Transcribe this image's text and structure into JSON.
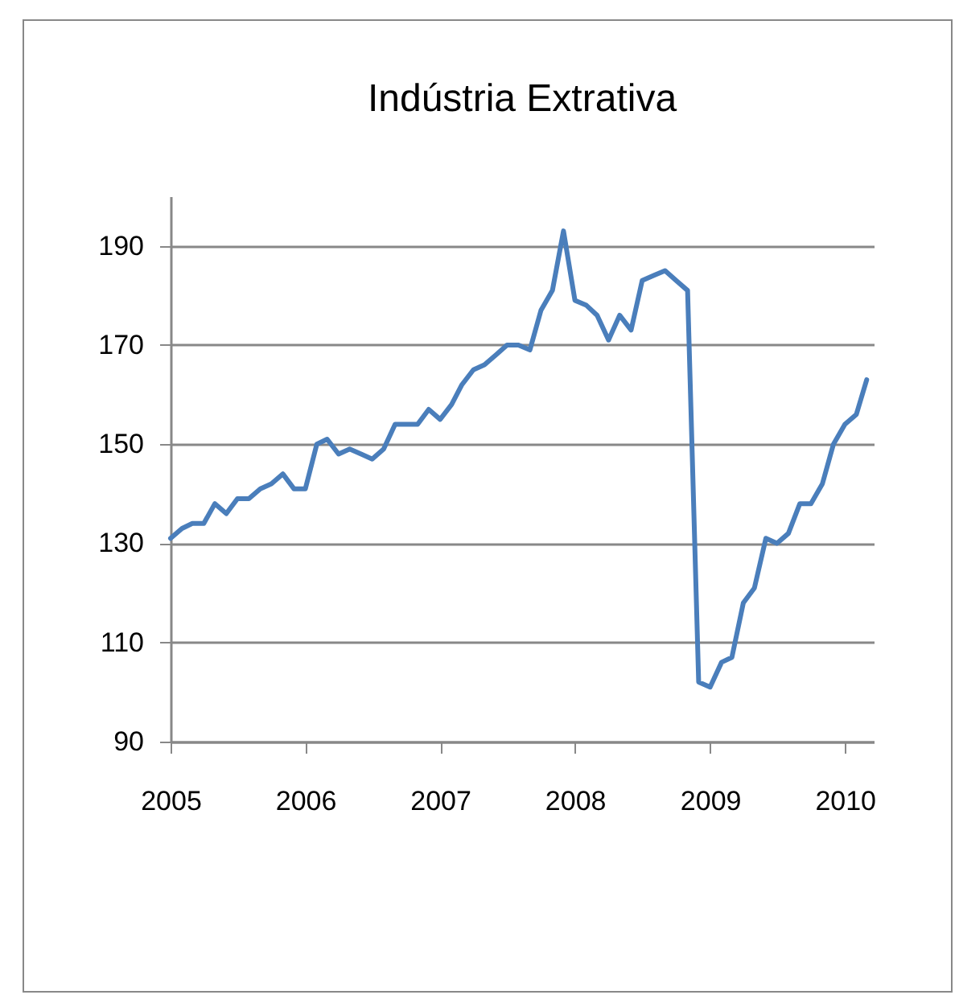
{
  "chart_data": {
    "type": "line",
    "title": "Indústria Extrativa",
    "x": [
      "2005-01",
      "2005-02",
      "2005-03",
      "2005-04",
      "2005-05",
      "2005-06",
      "2005-07",
      "2005-08",
      "2005-09",
      "2005-10",
      "2005-11",
      "2005-12",
      "2006-01",
      "2006-02",
      "2006-03",
      "2006-04",
      "2006-05",
      "2006-06",
      "2006-07",
      "2006-08",
      "2006-09",
      "2006-10",
      "2006-11",
      "2006-12",
      "2007-01",
      "2007-02",
      "2007-03",
      "2007-04",
      "2007-05",
      "2007-06",
      "2007-07",
      "2007-08",
      "2007-09",
      "2007-10",
      "2007-11",
      "2007-12",
      "2008-01",
      "2008-02",
      "2008-03",
      "2008-04",
      "2008-05",
      "2008-06",
      "2008-07",
      "2008-08",
      "2008-09",
      "2008-10",
      "2008-11",
      "2008-12",
      "2009-01",
      "2009-02",
      "2009-03",
      "2009-04",
      "2009-05",
      "2009-06",
      "2009-07",
      "2009-08",
      "2009-09",
      "2009-10",
      "2009-11",
      "2009-12",
      "2010-01",
      "2010-02",
      "2010-03"
    ],
    "series": [
      {
        "color": "#4a7ebb",
        "values": [
          131,
          133,
          134,
          134,
          138,
          136,
          139,
          139,
          141,
          142,
          144,
          141,
          141,
          150,
          151,
          148,
          149,
          148,
          147,
          149,
          154,
          154,
          154,
          157,
          155,
          158,
          162,
          165,
          166,
          168,
          170,
          170,
          169,
          177,
          181,
          193,
          179,
          178,
          176,
          171,
          176,
          173,
          183,
          184,
          185,
          183,
          181,
          102,
          101,
          106,
          107,
          118,
          121,
          131,
          130,
          132,
          138,
          138,
          142,
          150,
          154,
          156,
          163
        ]
      }
    ],
    "xlim": [
      "2005-01-01",
      "2010-03-20"
    ],
    "xticks": [
      "2005",
      "2006",
      "2007",
      "2008",
      "2009",
      "2010"
    ],
    "ylim": [
      90,
      200
    ],
    "yticks": [
      90,
      110,
      130,
      150,
      170,
      190
    ],
    "grid": "y",
    "marker": "none",
    "line_style": "solid"
  }
}
